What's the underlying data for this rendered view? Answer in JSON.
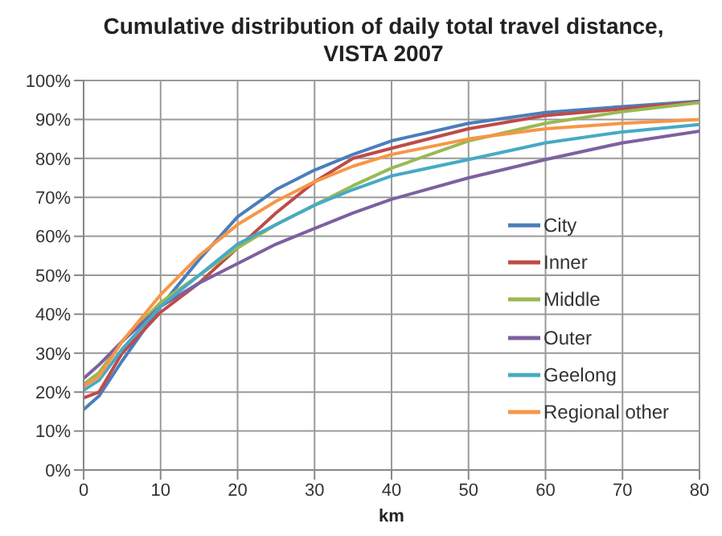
{
  "chart_data": {
    "type": "line",
    "title": "Cumulative distribution of daily total travel distance, VISTA 2007",
    "xlabel": "km",
    "x": [
      0,
      2,
      5,
      10,
      15,
      20,
      25,
      30,
      35,
      40,
      50,
      60,
      70,
      80
    ],
    "series": [
      {
        "name": "City",
        "color": "#4a7ebb",
        "values": [
          15.5,
          19,
          28,
          42,
          54,
          65,
          72,
          77,
          81,
          84.5,
          89,
          91.8,
          93.3,
          94.7
        ]
      },
      {
        "name": "Inner",
        "color": "#be4b48",
        "values": [
          18.5,
          20,
          30,
          40.5,
          48,
          57,
          66,
          74,
          80,
          82.6,
          87.6,
          91,
          92.7,
          94.5
        ]
      },
      {
        "name": "Middle",
        "color": "#98b954",
        "values": [
          22,
          25,
          33,
          43,
          50,
          57,
          63,
          68,
          73,
          77.5,
          84.5,
          89,
          92,
          94.3
        ]
      },
      {
        "name": "Outer",
        "color": "#7d60a0",
        "values": [
          23.5,
          27,
          33,
          42,
          48,
          53,
          58,
          62,
          66,
          69.5,
          75,
          79.7,
          84,
          87
        ]
      },
      {
        "name": "Geelong",
        "color": "#46aac5",
        "values": [
          20.5,
          23,
          31,
          42,
          50,
          58,
          63,
          68,
          72,
          75.5,
          79.7,
          84,
          86.8,
          88.7
        ]
      },
      {
        "name": "Regional other",
        "color": "#f79646",
        "values": [
          21.5,
          24,
          33,
          45,
          55,
          63,
          69,
          74,
          78,
          81,
          85,
          87.6,
          89,
          90
        ]
      }
    ],
    "xlim": [
      0,
      80
    ],
    "xticks": [
      0,
      10,
      20,
      30,
      40,
      50,
      60,
      70,
      80
    ],
    "ylim": [
      0,
      100
    ],
    "yticks": [
      {
        "value": 0,
        "label": "0%"
      },
      {
        "value": 10,
        "label": "10%"
      },
      {
        "value": 20,
        "label": "20%"
      },
      {
        "value": 30,
        "label": "30%"
      },
      {
        "value": 40,
        "label": "40%"
      },
      {
        "value": 50,
        "label": "50%"
      },
      {
        "value": 60,
        "label": "60%"
      },
      {
        "value": 70,
        "label": "70%"
      },
      {
        "value": 80,
        "label": "80%"
      },
      {
        "value": 90,
        "label": "90%"
      },
      {
        "value": 100,
        "label": "100%"
      }
    ],
    "grid": true,
    "legend": "right",
    "marker": "none",
    "line_style": "solid"
  }
}
